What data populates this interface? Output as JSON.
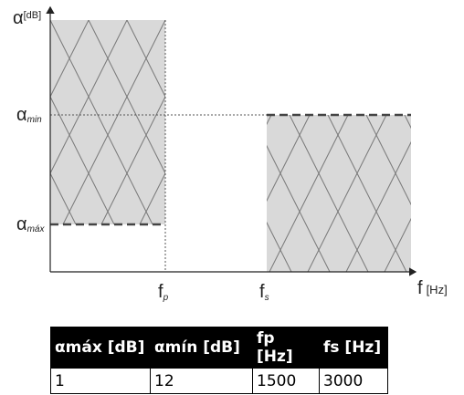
{
  "diagram": {
    "y_axis_label": {
      "symbol": "α",
      "unit": "[dB]"
    },
    "alpha_min_label": {
      "symbol": "α",
      "sub": "min"
    },
    "alpha_max_label": {
      "symbol": "α",
      "sub": "máx"
    },
    "fp_label": {
      "symbol": "f",
      "sub": "p"
    },
    "fs_label": {
      "symbol": "f",
      "sub": "s"
    },
    "x_axis_label": {
      "symbol": "f",
      "unit": "[Hz]"
    }
  },
  "table": {
    "header": [
      "αmáx [dB]",
      "αmín [dB]",
      "fp [Hz]",
      "fs [Hz]"
    ],
    "rows": [
      [
        "1",
        "12",
        "1500",
        "3000"
      ]
    ]
  }
}
